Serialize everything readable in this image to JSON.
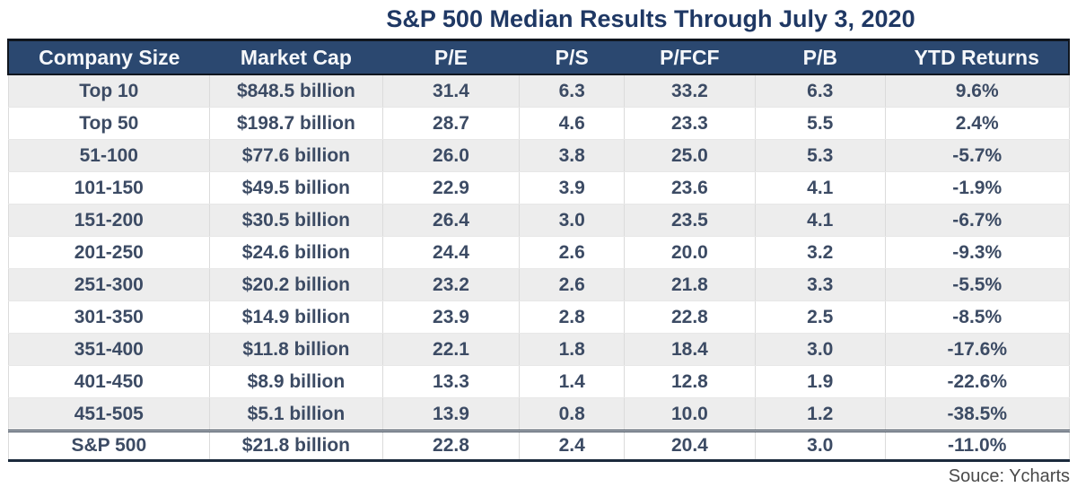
{
  "title": "S&P 500 Median Results Through July 3, 2020",
  "source_credit": "Souce: Ycharts",
  "colors": {
    "title_text": "#1F3864",
    "header_bg": "#2B4870",
    "header_text": "#F5F7FA",
    "body_text": "#3C4B64",
    "stripe_bg": "#EDEDED",
    "total_border": "#1B2A3C"
  },
  "chart_data": {
    "type": "table",
    "title": "S&P 500 Median Results Through July 3, 2020",
    "columns": [
      "Company Size",
      "Market Cap",
      "P/E",
      "P/S",
      "P/FCF",
      "P/B",
      "YTD Returns"
    ],
    "column_widths_pct": [
      19.0,
      16.3,
      12.9,
      9.9,
      12.3,
      12.3,
      17.3
    ],
    "rows": [
      [
        "Top 10",
        "$848.5 billion",
        "31.4",
        "6.3",
        "33.2",
        "6.3",
        "9.6%"
      ],
      [
        "Top 50",
        "$198.7 billion",
        "28.7",
        "4.6",
        "23.3",
        "5.5",
        "2.4%"
      ],
      [
        "51-100",
        "$77.6 billion",
        "26.0",
        "3.8",
        "25.0",
        "5.3",
        "-5.7%"
      ],
      [
        "101-150",
        "$49.5 billion",
        "22.9",
        "3.9",
        "23.6",
        "4.1",
        "-1.9%"
      ],
      [
        "151-200",
        "$30.5 billion",
        "26.4",
        "3.0",
        "23.5",
        "4.1",
        "-6.7%"
      ],
      [
        "201-250",
        "$24.6 billion",
        "24.4",
        "2.6",
        "20.0",
        "3.2",
        "-9.3%"
      ],
      [
        "251-300",
        "$20.2 billion",
        "23.2",
        "2.6",
        "21.8",
        "3.3",
        "-5.5%"
      ],
      [
        "301-350",
        "$14.9 billion",
        "23.9",
        "2.8",
        "22.8",
        "2.5",
        "-8.5%"
      ],
      [
        "351-400",
        "$11.8 billion",
        "22.1",
        "1.8",
        "18.4",
        "3.0",
        "-17.6%"
      ],
      [
        "401-450",
        "$8.9 billion",
        "13.3",
        "1.4",
        "12.8",
        "1.9",
        "-22.6%"
      ],
      [
        "451-505",
        "$5.1 billion",
        "13.9",
        "0.8",
        "10.0",
        "1.2",
        "-38.5%"
      ]
    ],
    "total_row": [
      "S&P 500",
      "$21.8 billion",
      "22.8",
      "2.4",
      "20.4",
      "3.0",
      "-11.0%"
    ],
    "layout": {
      "row_striping": "alternating, first data row shaded gray",
      "total_row_style": "double rule above, heavy rule below",
      "alignment": "all cells centered"
    }
  }
}
